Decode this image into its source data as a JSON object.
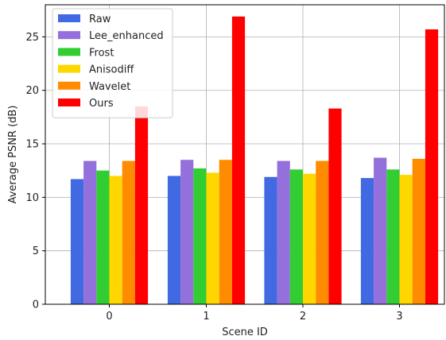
{
  "chart_data": {
    "type": "bar",
    "xlabel": "Scene ID",
    "ylabel": "Average PSNR (dB)",
    "categories": [
      "0",
      "1",
      "2",
      "3"
    ],
    "ylim": [
      0,
      28
    ],
    "yticks": [
      "0",
      "5",
      "10",
      "15",
      "20",
      "25"
    ],
    "grid": true,
    "legend_position": "top-left",
    "series": [
      {
        "name": "Raw",
        "color": "#4169e1",
        "values": [
          11.7,
          12.0,
          11.9,
          11.8
        ]
      },
      {
        "name": "Lee_enhanced",
        "color": "#9370db",
        "values": [
          13.4,
          13.5,
          13.4,
          13.7
        ]
      },
      {
        "name": "Frost",
        "color": "#32cd32",
        "values": [
          12.5,
          12.7,
          12.6,
          12.6
        ]
      },
      {
        "name": "Anisodiff",
        "color": "#ffd700",
        "values": [
          12.0,
          12.3,
          12.2,
          12.1
        ]
      },
      {
        "name": "Wavelet",
        "color": "#ff8c00",
        "values": [
          13.4,
          13.5,
          13.4,
          13.6
        ]
      },
      {
        "name": "Ours",
        "color": "#ff0000",
        "values": [
          18.5,
          26.9,
          18.3,
          25.7
        ]
      }
    ]
  }
}
